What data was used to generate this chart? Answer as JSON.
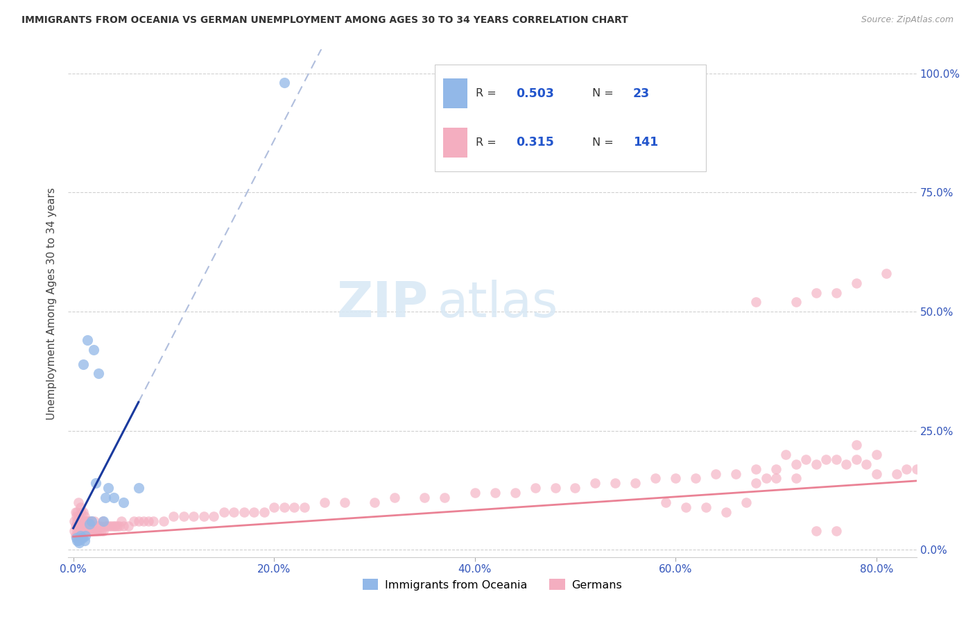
{
  "title": "IMMIGRANTS FROM OCEANIA VS GERMAN UNEMPLOYMENT AMONG AGES 30 TO 34 YEARS CORRELATION CHART",
  "source": "Source: ZipAtlas.com",
  "ylabel_label": "Unemployment Among Ages 30 to 34 years",
  "legend_label1": "Immigrants from Oceania",
  "legend_label2": "Germans",
  "R1": 0.503,
  "N1": 23,
  "R2": 0.315,
  "N2": 141,
  "blue_scatter_color": "#92b8e8",
  "pink_scatter_color": "#f4aec0",
  "blue_line_color": "#1a3a9e",
  "pink_line_color": "#e8758a",
  "dashed_line_color": "#b0bedd",
  "watermark_zip": "ZIP",
  "watermark_atlas": "atlas",
  "blue_x": [
    0.003,
    0.004,
    0.005,
    0.006,
    0.007,
    0.008,
    0.009,
    0.01,
    0.011,
    0.012,
    0.014,
    0.016,
    0.018,
    0.02,
    0.022,
    0.025,
    0.03,
    0.032,
    0.035,
    0.04,
    0.05,
    0.065,
    0.21
  ],
  "blue_y": [
    0.025,
    0.02,
    0.02,
    0.015,
    0.03,
    0.025,
    0.025,
    0.39,
    0.02,
    0.03,
    0.44,
    0.055,
    0.06,
    0.42,
    0.14,
    0.37,
    0.06,
    0.11,
    0.13,
    0.11,
    0.1,
    0.13,
    0.98
  ],
  "pink_x": [
    0.001,
    0.001,
    0.002,
    0.002,
    0.002,
    0.003,
    0.003,
    0.003,
    0.004,
    0.004,
    0.004,
    0.005,
    0.005,
    0.005,
    0.005,
    0.006,
    0.006,
    0.006,
    0.007,
    0.007,
    0.007,
    0.008,
    0.008,
    0.008,
    0.009,
    0.009,
    0.01,
    0.01,
    0.01,
    0.011,
    0.011,
    0.012,
    0.012,
    0.013,
    0.013,
    0.014,
    0.014,
    0.015,
    0.015,
    0.016,
    0.016,
    0.017,
    0.018,
    0.018,
    0.019,
    0.02,
    0.021,
    0.022,
    0.023,
    0.024,
    0.025,
    0.026,
    0.027,
    0.028,
    0.029,
    0.03,
    0.032,
    0.034,
    0.036,
    0.038,
    0.04,
    0.042,
    0.044,
    0.046,
    0.048,
    0.05,
    0.055,
    0.06,
    0.065,
    0.07,
    0.075,
    0.08,
    0.09,
    0.1,
    0.11,
    0.12,
    0.13,
    0.14,
    0.15,
    0.16,
    0.17,
    0.18,
    0.19,
    0.2,
    0.21,
    0.22,
    0.23,
    0.25,
    0.27,
    0.3,
    0.32,
    0.35,
    0.37,
    0.4,
    0.42,
    0.44,
    0.46,
    0.48,
    0.5,
    0.52,
    0.54,
    0.56,
    0.58,
    0.6,
    0.62,
    0.64,
    0.66,
    0.68,
    0.7,
    0.72,
    0.74,
    0.76,
    0.78,
    0.8,
    0.68,
    0.72,
    0.74,
    0.76,
    0.78,
    0.68,
    0.7,
    0.72,
    0.74,
    0.76,
    0.78,
    0.8,
    0.82,
    0.84,
    0.83,
    0.81,
    0.79,
    0.77,
    0.75,
    0.73,
    0.71,
    0.69,
    0.67,
    0.65,
    0.63,
    0.61,
    0.59
  ],
  "pink_y": [
    0.04,
    0.06,
    0.03,
    0.05,
    0.08,
    0.03,
    0.05,
    0.07,
    0.04,
    0.06,
    0.08,
    0.03,
    0.05,
    0.07,
    0.1,
    0.04,
    0.05,
    0.07,
    0.04,
    0.06,
    0.09,
    0.04,
    0.06,
    0.08,
    0.04,
    0.06,
    0.04,
    0.06,
    0.08,
    0.04,
    0.07,
    0.04,
    0.06,
    0.04,
    0.06,
    0.04,
    0.06,
    0.04,
    0.06,
    0.04,
    0.06,
    0.04,
    0.04,
    0.06,
    0.04,
    0.04,
    0.06,
    0.04,
    0.05,
    0.04,
    0.05,
    0.04,
    0.05,
    0.04,
    0.06,
    0.04,
    0.05,
    0.05,
    0.05,
    0.05,
    0.05,
    0.05,
    0.05,
    0.05,
    0.06,
    0.05,
    0.05,
    0.06,
    0.06,
    0.06,
    0.06,
    0.06,
    0.06,
    0.07,
    0.07,
    0.07,
    0.07,
    0.07,
    0.08,
    0.08,
    0.08,
    0.08,
    0.08,
    0.09,
    0.09,
    0.09,
    0.09,
    0.1,
    0.1,
    0.1,
    0.11,
    0.11,
    0.11,
    0.12,
    0.12,
    0.12,
    0.13,
    0.13,
    0.13,
    0.14,
    0.14,
    0.14,
    0.15,
    0.15,
    0.15,
    0.16,
    0.16,
    0.17,
    0.17,
    0.18,
    0.18,
    0.19,
    0.19,
    0.2,
    0.52,
    0.52,
    0.54,
    0.54,
    0.56,
    0.14,
    0.15,
    0.15,
    0.04,
    0.04,
    0.22,
    0.16,
    0.16,
    0.17,
    0.17,
    0.58,
    0.18,
    0.18,
    0.19,
    0.19,
    0.2,
    0.15,
    0.1,
    0.08,
    0.09,
    0.09,
    0.1
  ],
  "xlim": [
    -0.005,
    0.84
  ],
  "ylim": [
    -0.015,
    1.05
  ],
  "x_ticks": [
    0.0,
    0.2,
    0.4,
    0.6,
    0.8
  ],
  "x_tick_labels": [
    "0.0%",
    "20.0%",
    "40.0%",
    "60.0%",
    "80.0%"
  ],
  "y_ticks": [
    0.0,
    0.25,
    0.5,
    0.75,
    1.0
  ],
  "y_tick_labels": [
    "0.0%",
    "25.0%",
    "50.0%",
    "75.0%",
    "100.0%"
  ]
}
